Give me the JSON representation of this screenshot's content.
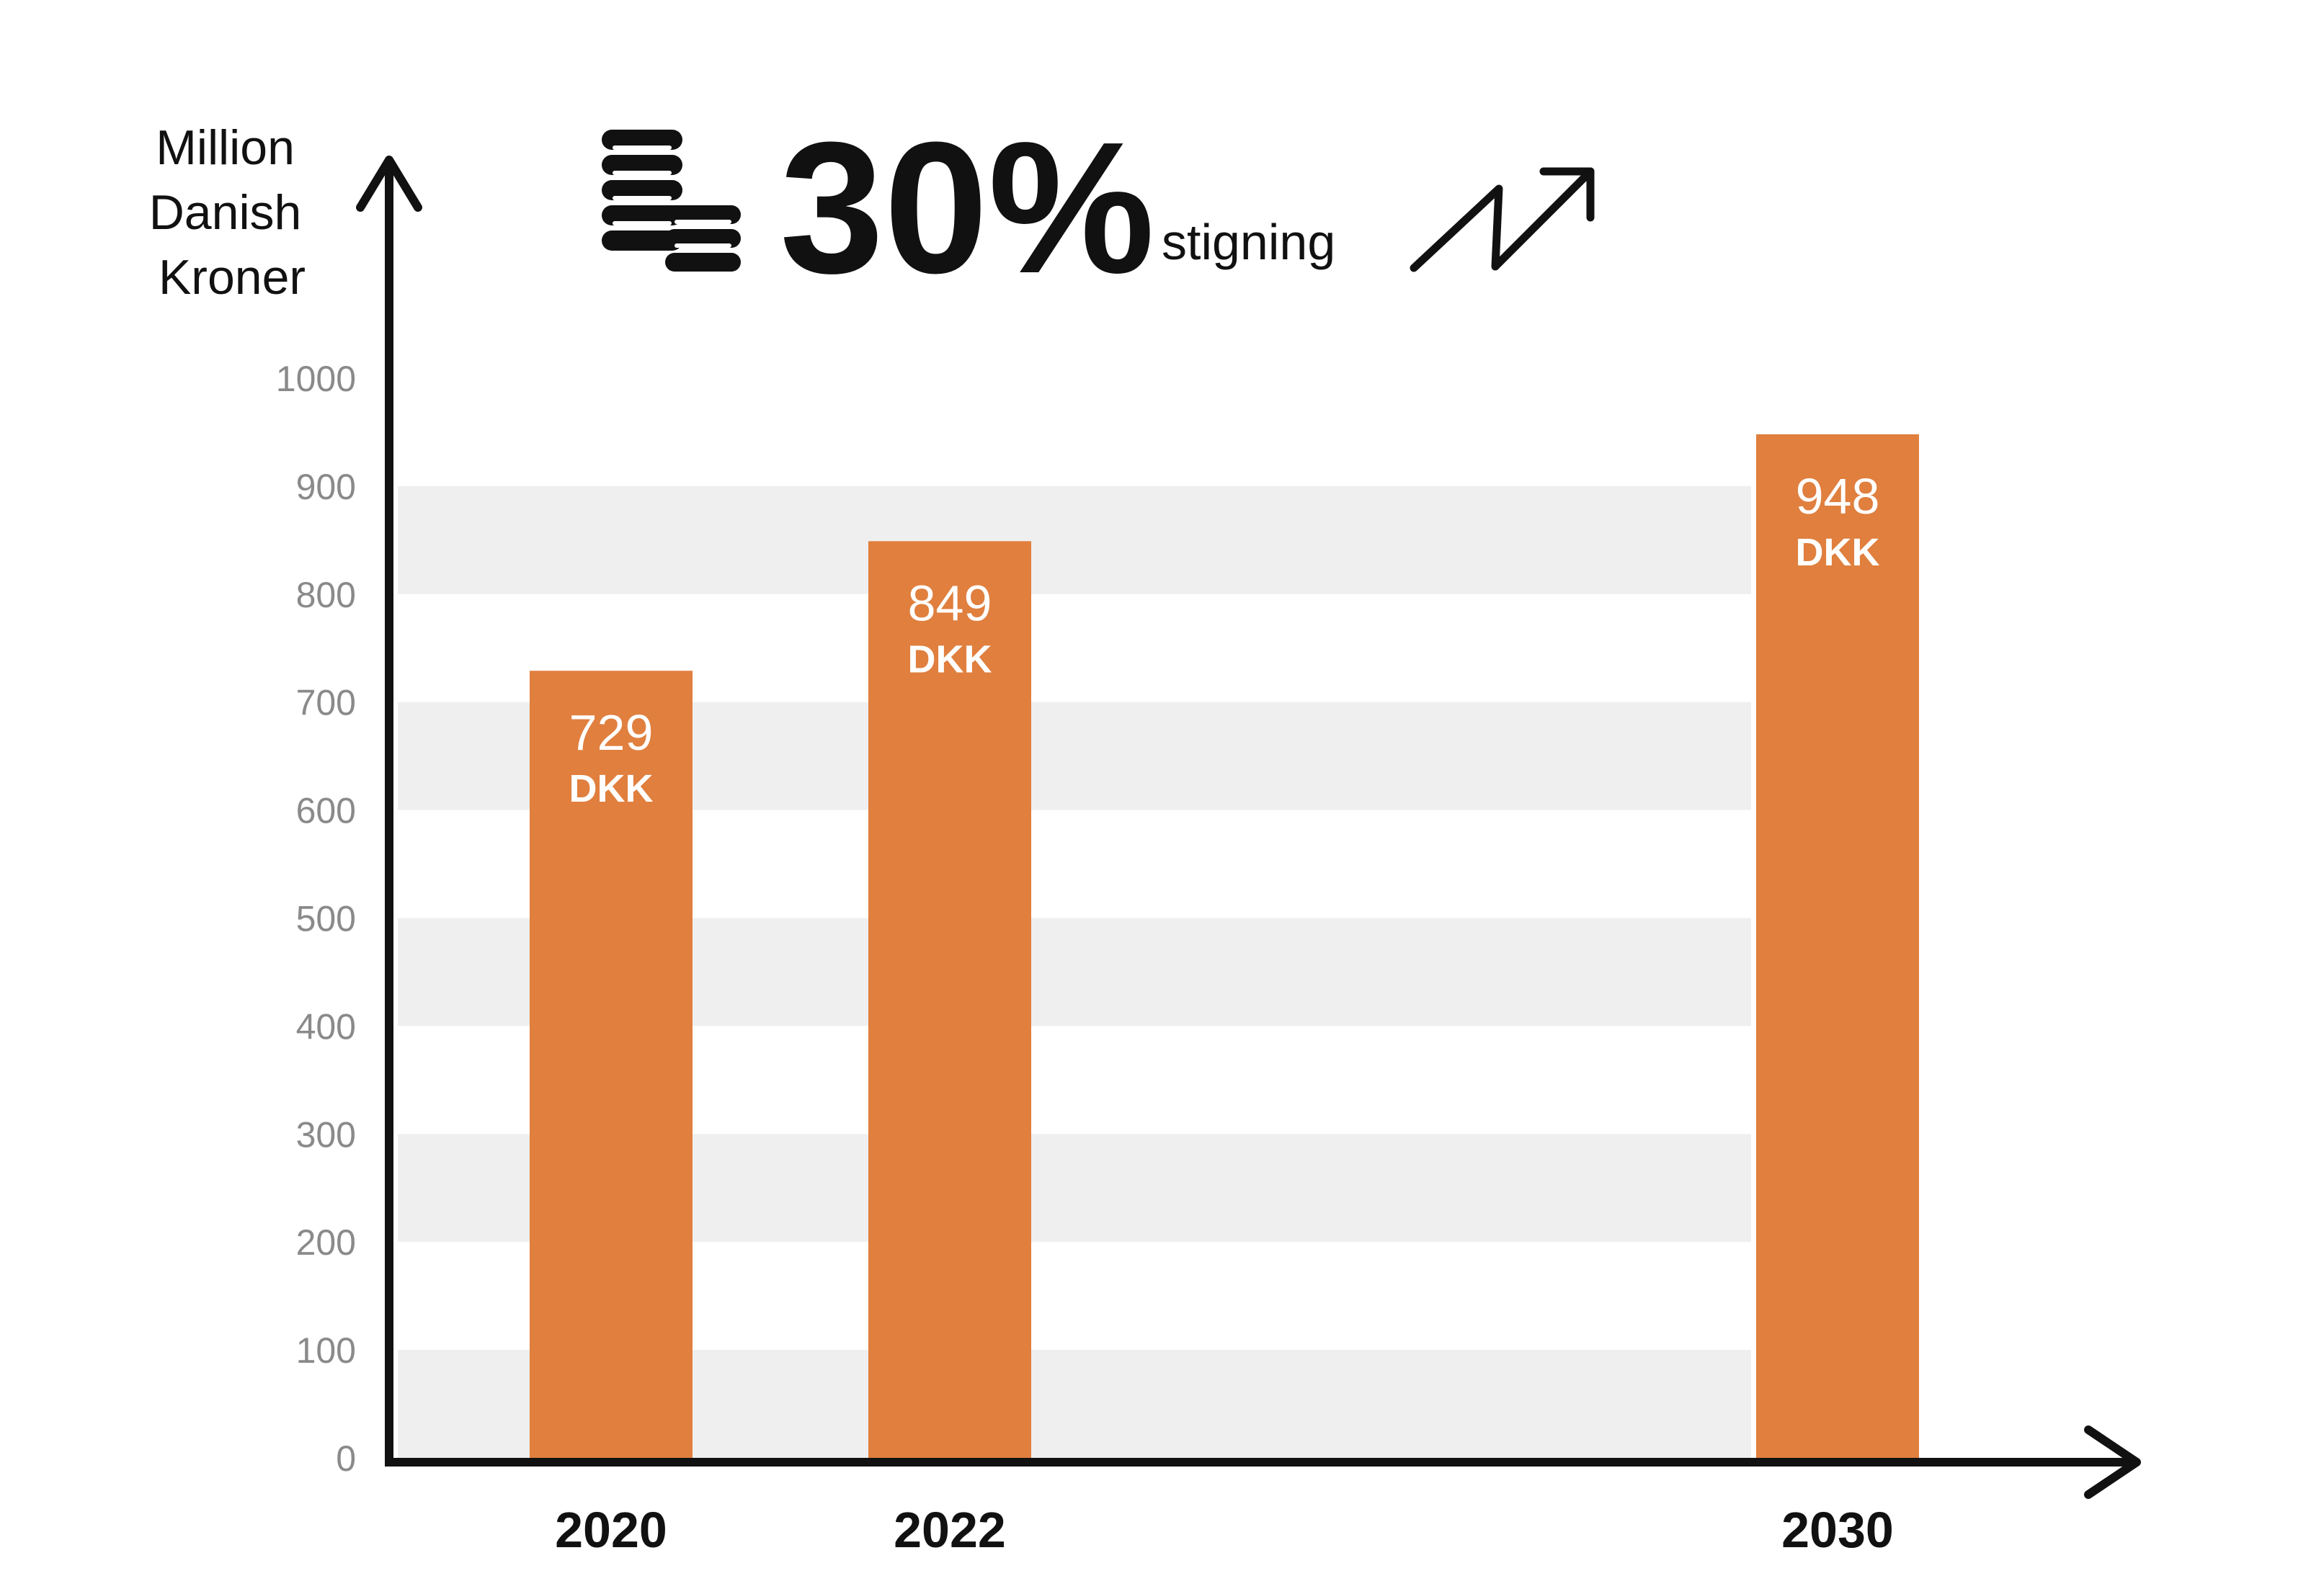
{
  "headline": {
    "percent": "30%",
    "caption": "stigning",
    "icon": "coins-stack-icon",
    "trend_icon": "trend-up-arrow-icon"
  },
  "colors": {
    "bar": "#E07F3E",
    "band": "#EFEFEF",
    "axis": "#111111",
    "tick": "#8A8A8A",
    "bar_label": "#FFFFFF"
  },
  "chart_data": {
    "type": "bar",
    "ylabel_lines": [
      "Million",
      "Danish",
      "Kroner"
    ],
    "xlabel": "",
    "categories": [
      "2020",
      "2022",
      "2030"
    ],
    "values": [
      729,
      849,
      948
    ],
    "value_labels": [
      "729",
      "849",
      "948"
    ],
    "unit_label": "DKK",
    "ylim": [
      0,
      1000
    ],
    "yticks": [
      0,
      100,
      200,
      300,
      400,
      500,
      600,
      700,
      800,
      900,
      1000
    ],
    "grid": "alternating horizontal bands",
    "legend": "none"
  }
}
